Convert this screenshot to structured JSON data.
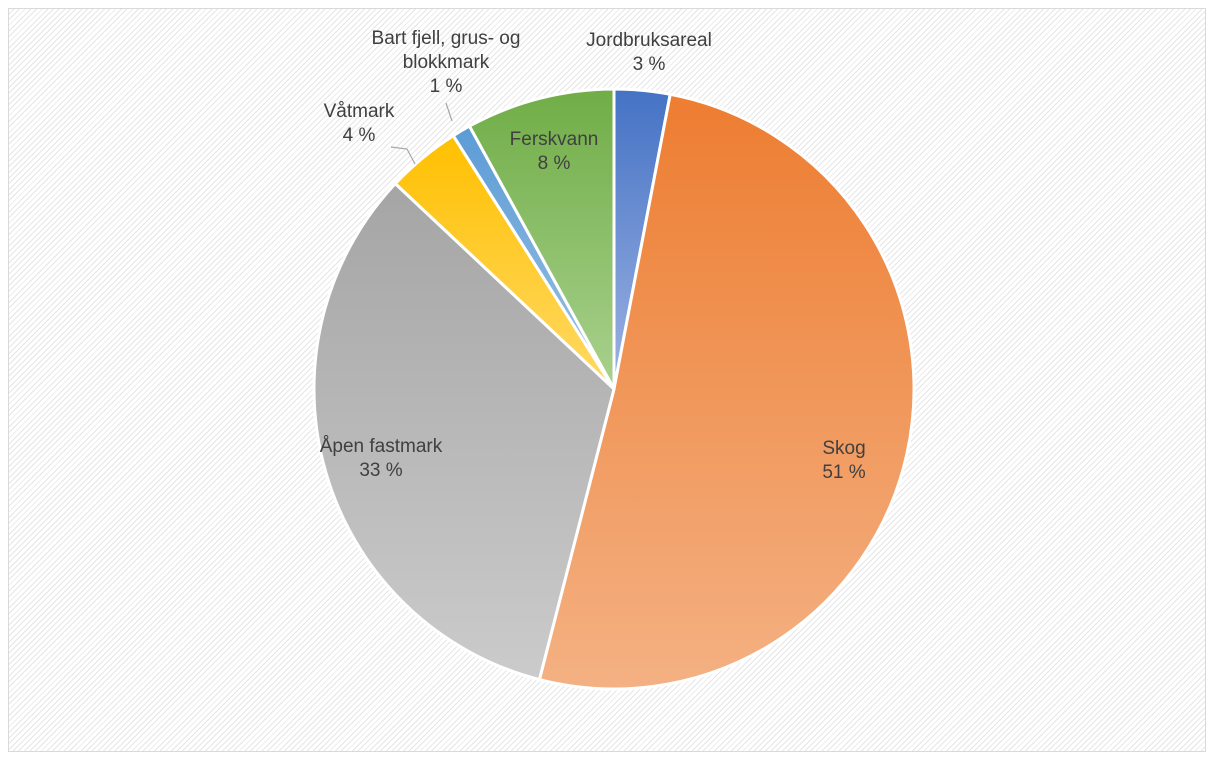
{
  "chart_data": {
    "type": "pie",
    "slices": [
      {
        "name": "Jordbruksareal",
        "value": 3,
        "label": "3 %",
        "color": "#4472c4",
        "color_light": "#9db3e3"
      },
      {
        "name": "Skog",
        "value": 51,
        "label": "51 %",
        "color": "#ed7d31",
        "color_light": "#f4b183"
      },
      {
        "name": "Åpen fastmark",
        "value": 33,
        "label": "33 %",
        "color": "#a5a5a5",
        "color_light": "#cbcbcb"
      },
      {
        "name": "Våtmark",
        "value": 4,
        "label": "4 %",
        "color": "#ffc000",
        "color_light": "#ffd966"
      },
      {
        "name": "Bart fjell, grus- og blokkmark",
        "value": 1,
        "label": "1 %",
        "color": "#5b9bd5",
        "color_light": "#9dc3e6"
      },
      {
        "name": "Ferskvann",
        "value": 8,
        "label": "8 %",
        "color": "#70ad47",
        "color_light": "#a9d18e"
      }
    ]
  }
}
